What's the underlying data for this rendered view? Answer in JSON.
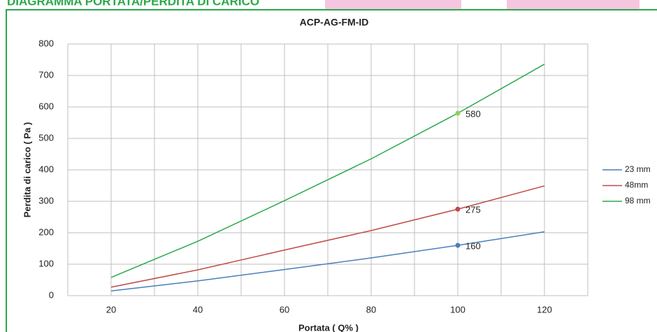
{
  "header": "DIAGRAMMA PORTATA/PERDITA DI CARICO",
  "chart_data": {
    "type": "line",
    "title": "ACP-AG-FM-ID",
    "x_label": "Portata  ( Q% )",
    "y_label": "Perdita di carico  ( Pa )",
    "x": [
      20,
      40,
      60,
      80,
      100,
      120
    ],
    "series": [
      {
        "name": "23 mm",
        "color": "#4a7ebb",
        "values": [
          15,
          47,
          83,
          120,
          160,
          203
        ],
        "highlight": {
          "x": 100,
          "value": 160,
          "color": "#4a7ebb"
        }
      },
      {
        "name": "48mm",
        "color": "#be4b48",
        "values": [
          27,
          82,
          145,
          207,
          275,
          349
        ],
        "highlight": {
          "x": 100,
          "value": 275,
          "color": "#be4b48"
        }
      },
      {
        "name": "98 mm",
        "color": "#2aa84a",
        "values": [
          58,
          173,
          302,
          435,
          580,
          736
        ],
        "highlight": {
          "x": 100,
          "value": 580,
          "color": "#92d050"
        }
      }
    ],
    "xlim": [
      10,
      130
    ],
    "xticks": [
      20,
      40,
      60,
      80,
      100,
      120
    ],
    "xgrid": [
      10,
      20,
      30,
      40,
      50,
      60,
      70,
      80,
      90,
      100,
      110,
      120,
      130
    ],
    "ylim": [
      0,
      800
    ],
    "yticks": [
      0,
      100,
      200,
      300,
      400,
      500,
      600,
      700,
      800
    ],
    "grid": true,
    "legend": "right"
  }
}
